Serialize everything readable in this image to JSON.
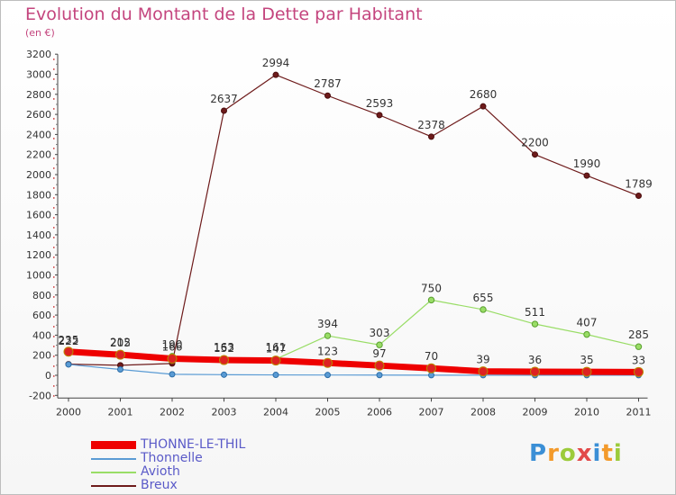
{
  "title": "Evolution du Montant de la Dette par Habitant",
  "subtitle": "(en €)",
  "logo_text": "Proxiti",
  "chart_data": {
    "type": "line",
    "title": "Evolution du Montant de la Dette par Habitant",
    "subtitle": "(en €)",
    "x": [
      "2000",
      "2001",
      "2002",
      "2003",
      "2004",
      "2005",
      "2006",
      "2007",
      "2008",
      "2009",
      "2010",
      "2011"
    ],
    "ylim": [
      -200,
      3200
    ],
    "yticks": [
      -200,
      0,
      200,
      400,
      600,
      800,
      1000,
      1200,
      1400,
      1600,
      1800,
      2000,
      2200,
      2400,
      2600,
      2800,
      3000,
      3200
    ],
    "grid": false,
    "legend_position": "bottom-left",
    "series": [
      {
        "name": "THONNE-LE-THIL",
        "color": "#ee0000",
        "values": [
          235,
          205,
          166,
          152,
          147,
          123,
          97,
          70,
          39,
          36,
          35,
          33
        ],
        "labels": [
          "235",
          "205",
          "166",
          "152",
          "147",
          "123",
          "97",
          "70",
          "39",
          "36",
          "35",
          "33"
        ]
      },
      {
        "name": "Thonnelle",
        "color": "#5a9bd4",
        "values": [
          108,
          58,
          10,
          6,
          4,
          3,
          2,
          1,
          1,
          1,
          1,
          1
        ],
        "labels": [
          "",
          "",
          "",
          "",
          "",
          "",
          "",
          "",
          "",
          "",
          "",
          ""
        ]
      },
      {
        "name": "Avioth",
        "color": "#99dd66",
        "values": [
          222,
          212,
          190,
          163,
          161,
          394,
          303,
          750,
          655,
          511,
          407,
          285
        ],
        "labels": [
          "222",
          "212",
          "190",
          "163",
          "161",
          "394",
          "303",
          "750",
          "655",
          "511",
          "407",
          "285"
        ]
      },
      {
        "name": "Breux",
        "color": "#6e1b1b",
        "values": [
          111,
          100,
          118,
          2637,
          2994,
          2787,
          2593,
          2378,
          2680,
          2200,
          1990,
          1789
        ],
        "labels": [
          "",
          "",
          "",
          "2637",
          "2994",
          "2787",
          "2593",
          "2378",
          "2680",
          "2200",
          "1990",
          "1789"
        ]
      }
    ]
  }
}
